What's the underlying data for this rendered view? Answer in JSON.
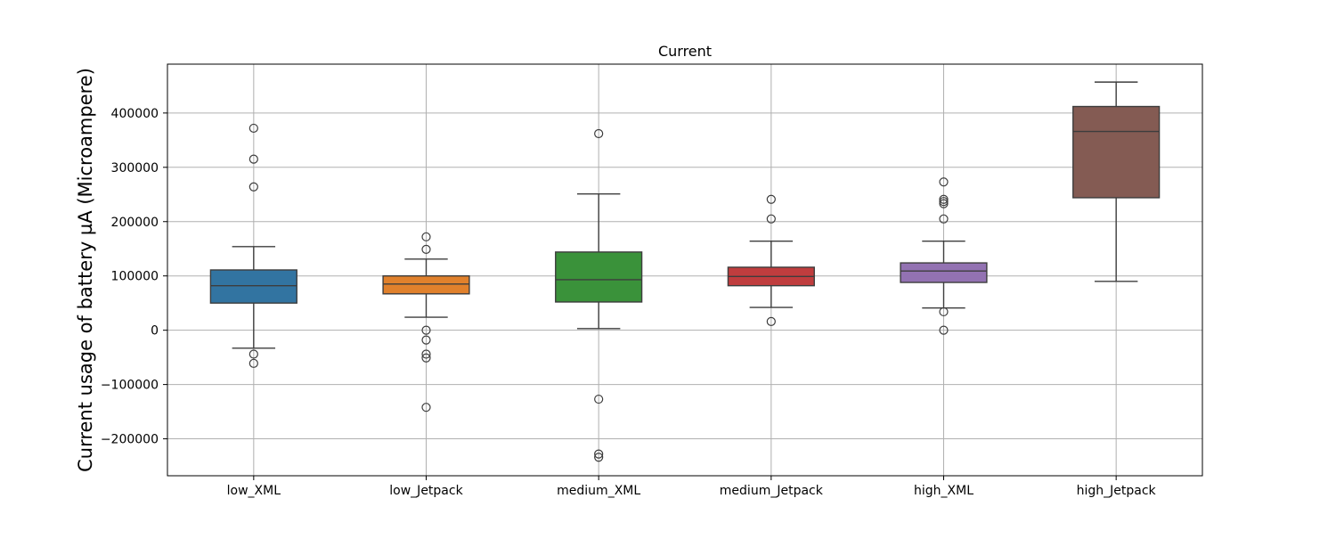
{
  "chart_data": {
    "type": "box",
    "title": "Current",
    "xlabel": "",
    "ylabel": "Current usage of battery µA (Microampere)",
    "ylim": [
      -268000,
      490000
    ],
    "yticks": [
      -200000,
      -100000,
      0,
      100000,
      200000,
      300000,
      400000
    ],
    "ytick_labels": [
      "−200000",
      "−100000",
      "0",
      "100000",
      "200000",
      "300000",
      "400000"
    ],
    "grid": true,
    "categories": [
      "low_XML",
      "low_Jetpack",
      "medium_XML",
      "medium_Jetpack",
      "high_XML",
      "high_Jetpack"
    ],
    "colors": [
      "#3274a1",
      "#e1812c",
      "#3a923a",
      "#c03d3e",
      "#9372b2",
      "#845b53"
    ],
    "boxes": [
      {
        "whislo": -33000,
        "q1": 50000,
        "med": 82000,
        "q3": 111000,
        "whishi": 154000,
        "fliers": [
          372000,
          315000,
          264000,
          -44000,
          -61000
        ]
      },
      {
        "whislo": 24000,
        "q1": 67000,
        "med": 85000,
        "q3": 100000,
        "whishi": 131000,
        "fliers": [
          172000,
          149000,
          0,
          -18000,
          -44000,
          -51000,
          -142000
        ]
      },
      {
        "whislo": 3000,
        "q1": 52000,
        "med": 93000,
        "q3": 144000,
        "whishi": 251000,
        "fliers": [
          362000,
          -127000,
          -228000,
          -234000
        ]
      },
      {
        "whislo": 42000,
        "q1": 82000,
        "med": 99000,
        "q3": 116000,
        "whishi": 164000,
        "fliers": [
          241000,
          205000,
          16000
        ]
      },
      {
        "whislo": 41000,
        "q1": 88000,
        "med": 109000,
        "q3": 124000,
        "whishi": 164000,
        "fliers": [
          273000,
          241000,
          237000,
          233000,
          205000,
          34000,
          0
        ]
      },
      {
        "whislo": 90000,
        "q1": 244000,
        "med": 366000,
        "q3": 412000,
        "whishi": 457000,
        "fliers": []
      }
    ]
  }
}
